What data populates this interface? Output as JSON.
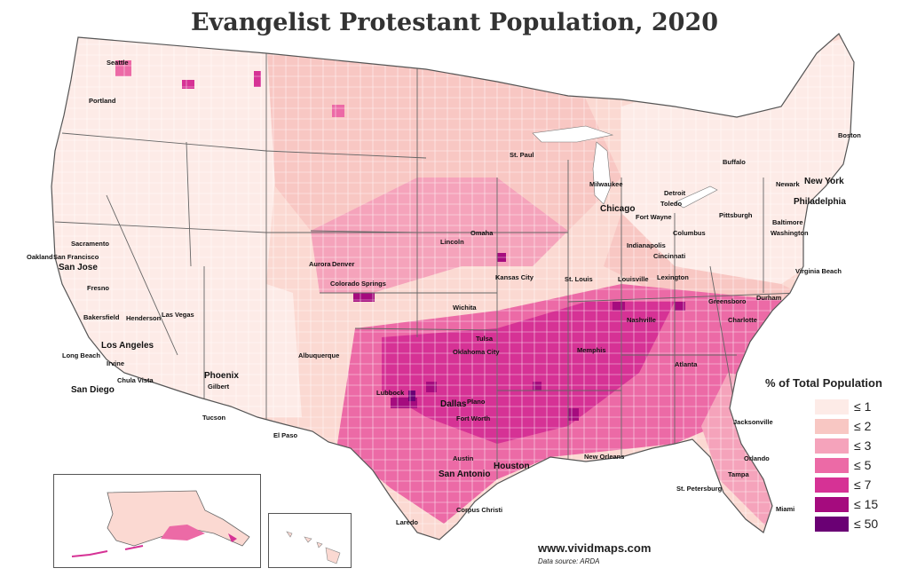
{
  "title": "Evangelist Protestant Population, 2020",
  "legend": {
    "title": "% of Total Population",
    "items": [
      {
        "label": "≤ 1",
        "color": "#fdebe7"
      },
      {
        "label": "≤ 2",
        "color": "#f8c7c3"
      },
      {
        "label": "≤ 3",
        "color": "#f5a3bb"
      },
      {
        "label": "≤ 5",
        "color": "#ec6aa6"
      },
      {
        "label": "≤ 7",
        "color": "#d63295"
      },
      {
        "label": "≤ 15",
        "color": "#a50b7e"
      },
      {
        "label": "≤ 50",
        "color": "#6a0074"
      }
    ]
  },
  "cities": [
    {
      "id": "seattle",
      "label": "Seattle"
    },
    {
      "id": "portland",
      "label": "Portland"
    },
    {
      "id": "sacramento",
      "label": "Sacramento"
    },
    {
      "id": "oakland",
      "label": "Oakland"
    },
    {
      "id": "san-francisco",
      "label": "San Francisco"
    },
    {
      "id": "san-jose",
      "label": "San Jose"
    },
    {
      "id": "fresno",
      "label": "Fresno"
    },
    {
      "id": "bakersfield",
      "label": "Bakersfield"
    },
    {
      "id": "henderson",
      "label": "Henderson"
    },
    {
      "id": "las-vegas",
      "label": "Las Vegas"
    },
    {
      "id": "los-angeles",
      "label": "Los Angeles"
    },
    {
      "id": "long-beach",
      "label": "Long Beach"
    },
    {
      "id": "irvine",
      "label": "Irvine"
    },
    {
      "id": "chula-vista",
      "label": "Chula Vista"
    },
    {
      "id": "san-diego",
      "label": "San Diego"
    },
    {
      "id": "phoenix",
      "label": "Phoenix"
    },
    {
      "id": "gilbert",
      "label": "Gilbert"
    },
    {
      "id": "tucson",
      "label": "Tucson"
    },
    {
      "id": "el-paso",
      "label": "El Paso"
    },
    {
      "id": "albuquerque",
      "label": "Albuquerque"
    },
    {
      "id": "aurora",
      "label": "Aurora"
    },
    {
      "id": "denver",
      "label": "Denver"
    },
    {
      "id": "colorado-springs",
      "label": "Colorado Springs"
    },
    {
      "id": "lincoln",
      "label": "Lincoln"
    },
    {
      "id": "omaha",
      "label": "Omaha"
    },
    {
      "id": "wichita",
      "label": "Wichita"
    },
    {
      "id": "kansas-city",
      "label": "Kansas City"
    },
    {
      "id": "tulsa",
      "label": "Tulsa"
    },
    {
      "id": "oklahoma-city",
      "label": "Oklahoma City"
    },
    {
      "id": "lubbock",
      "label": "Lubbock"
    },
    {
      "id": "dallas",
      "label": "Dallas"
    },
    {
      "id": "plano",
      "label": "Plano"
    },
    {
      "id": "fort-worth",
      "label": "Fort Worth"
    },
    {
      "id": "austin",
      "label": "Austin"
    },
    {
      "id": "san-antonio",
      "label": "San Antonio"
    },
    {
      "id": "houston",
      "label": "Houston"
    },
    {
      "id": "corpus-christi",
      "label": "Corpus Christi"
    },
    {
      "id": "laredo",
      "label": "Laredo"
    },
    {
      "id": "st-paul",
      "label": "St. Paul"
    },
    {
      "id": "milwaukee",
      "label": "Milwaukee"
    },
    {
      "id": "chicago",
      "label": "Chicago"
    },
    {
      "id": "st-louis",
      "label": "St. Louis"
    },
    {
      "id": "memphis",
      "label": "Memphis"
    },
    {
      "id": "nashville",
      "label": "Nashville"
    },
    {
      "id": "louisville",
      "label": "Louisville"
    },
    {
      "id": "lexington",
      "label": "Lexington"
    },
    {
      "id": "indianapolis",
      "label": "Indianapolis"
    },
    {
      "id": "cincinnati",
      "label": "Cincinnati"
    },
    {
      "id": "columbus",
      "label": "Columbus"
    },
    {
      "id": "fort-wayne",
      "label": "Fort Wayne"
    },
    {
      "id": "toledo",
      "label": "Toledo"
    },
    {
      "id": "detroit",
      "label": "Detroit"
    },
    {
      "id": "new-orleans",
      "label": "New Orleans"
    },
    {
      "id": "atlanta",
      "label": "Atlanta"
    },
    {
      "id": "charlotte",
      "label": "Charlotte"
    },
    {
      "id": "greensboro",
      "label": "Greensboro"
    },
    {
      "id": "durham",
      "label": "Durham"
    },
    {
      "id": "virginia-beach",
      "label": "Virginia Beach"
    },
    {
      "id": "jacksonville",
      "label": "Jacksonville"
    },
    {
      "id": "orlando",
      "label": "Orlando"
    },
    {
      "id": "tampa",
      "label": "Tampa"
    },
    {
      "id": "st-petersburg",
      "label": "St. Petersburg"
    },
    {
      "id": "miami",
      "label": "Miami"
    },
    {
      "id": "pittsburgh",
      "label": "Pittsburgh"
    },
    {
      "id": "baltimore",
      "label": "Baltimore"
    },
    {
      "id": "washington",
      "label": "Washington"
    },
    {
      "id": "philadelphia",
      "label": "Philadelphia"
    },
    {
      "id": "newark",
      "label": "Newark"
    },
    {
      "id": "new-york",
      "label": "New York"
    },
    {
      "id": "buffalo",
      "label": "Buffalo"
    },
    {
      "id": "boston",
      "label": "Boston"
    }
  ],
  "footer": {
    "website": "www.vividmaps.com",
    "source": "Data source: ARDA"
  }
}
